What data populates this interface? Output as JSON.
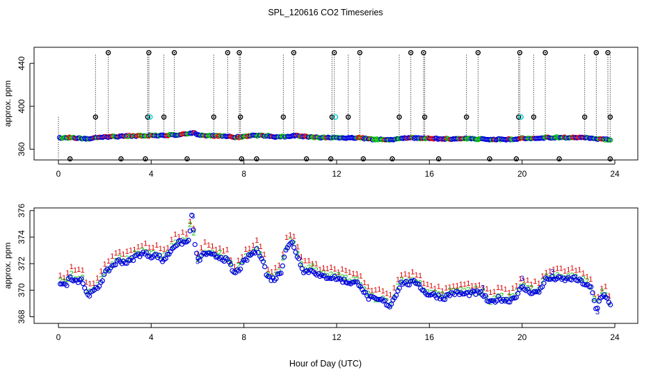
{
  "figure": {
    "title": "SPL_120616  CO2 Timeseries",
    "xlabel": "Hour of Day (UTC)"
  },
  "colors": {
    "series1": "#dd0000",
    "series2": "#00bb00",
    "series3": "#0000dd",
    "cyan": "#00cccc",
    "outlier": "#000000"
  },
  "chart_data": [
    {
      "type": "scatter",
      "panel": "top",
      "ylabel": "approx. ppm",
      "xlim": [
        0,
        24
      ],
      "ylim": [
        350,
        455
      ],
      "x_ticks": [
        "0",
        "4",
        "8",
        "12",
        "16",
        "20",
        "24"
      ],
      "y_ticks": [
        "360",
        "400",
        "440"
      ],
      "y_tick_values": [
        360,
        400,
        440
      ],
      "baseline": [
        [
          0,
          370.4
        ],
        [
          0.5,
          370.8
        ],
        [
          1.2,
          369.6
        ],
        [
          2,
          371.4
        ],
        [
          3,
          372.3
        ],
        [
          4,
          372.6
        ],
        [
          5,
          373.2
        ],
        [
          5.8,
          375.3
        ],
        [
          6.2,
          372.6
        ],
        [
          7,
          372.2
        ],
        [
          7.8,
          371.2
        ],
        [
          8.3,
          372.7
        ],
        [
          9,
          372.6
        ],
        [
          9.5,
          371.2
        ],
        [
          10.2,
          372.8
        ],
        [
          11,
          371.0
        ],
        [
          12,
          370.8
        ],
        [
          13,
          370.5
        ],
        [
          13.5,
          369.3
        ],
        [
          14.3,
          368.9
        ],
        [
          15,
          370.5
        ],
        [
          15.8,
          370.2
        ],
        [
          16.5,
          369.6
        ],
        [
          17.5,
          369.9
        ],
        [
          18.5,
          369.3
        ],
        [
          19.5,
          369.2
        ],
        [
          20,
          370.1
        ],
        [
          20.6,
          369.9
        ],
        [
          21,
          370.8
        ],
        [
          21.5,
          371.0
        ],
        [
          22.5,
          370.8
        ],
        [
          23,
          370.2
        ],
        [
          23.5,
          369.4
        ],
        [
          23.8,
          368.8
        ]
      ],
      "outliers_high": [
        2.15,
        3.9,
        5.0,
        7.3,
        7.8,
        10.15,
        11.9,
        13.0,
        15.2,
        15.75,
        18.1,
        19.9,
        21.0,
        23.2,
        23.7
      ],
      "outliers_mid": [
        1.6,
        3.85,
        4.55,
        6.7,
        7.85,
        9.7,
        11.8,
        12.5,
        14.7,
        15.8,
        17.6,
        19.85,
        20.5,
        22.7,
        23.8
      ],
      "outliers_low": [
        0.5,
        2.7,
        3.75,
        5.55,
        7.9,
        8.55,
        10.7,
        11.75,
        13.15,
        14.4,
        16.4,
        18.6,
        19.75,
        21.6,
        23.8
      ],
      "cyan_points": [
        3.95,
        11.95,
        19.95
      ],
      "high_value": 450,
      "mid_value": 390,
      "low_value": 351,
      "legend_chars": [
        "1",
        "2",
        "3"
      ]
    },
    {
      "type": "scatter",
      "panel": "bottom",
      "ylabel": "approx. ppm",
      "xlim": [
        0,
        24
      ],
      "ylim": [
        367.5,
        376.2
      ],
      "x_ticks": [
        "0",
        "4",
        "8",
        "12",
        "16",
        "20",
        "24"
      ],
      "y_ticks": [
        "368",
        "370",
        "372",
        "374",
        "376"
      ],
      "y_tick_values": [
        368,
        370,
        372,
        374,
        376
      ],
      "series": [
        {
          "name": "1",
          "offset": 0.7,
          "color": "#dd0000"
        },
        {
          "name": "2",
          "offset": 0.2,
          "color": "#00bb00"
        },
        {
          "name": "3",
          "offset": 0.0,
          "color": "#0000dd"
        }
      ],
      "baseline": [
        [
          0.1,
          370.6
        ],
        [
          0.3,
          370.3
        ],
        [
          0.5,
          371.0
        ],
        [
          0.8,
          370.7
        ],
        [
          1.0,
          370.9
        ],
        [
          1.2,
          369.8
        ],
        [
          1.4,
          369.7
        ],
        [
          1.7,
          370.2
        ],
        [
          2.0,
          371.2
        ],
        [
          2.3,
          371.8
        ],
        [
          2.6,
          372.2
        ],
        [
          3.0,
          372.1
        ],
        [
          3.3,
          372.5
        ],
        [
          3.6,
          372.8
        ],
        [
          4.0,
          372.6
        ],
        [
          4.3,
          372.6
        ],
        [
          4.5,
          372.2
        ],
        [
          4.7,
          372.6
        ],
        [
          5.0,
          373.4
        ],
        [
          5.3,
          373.6
        ],
        [
          5.6,
          373.6
        ],
        [
          5.75,
          375.5
        ],
        [
          5.85,
          374.0
        ],
        [
          6.0,
          372.2
        ],
        [
          6.3,
          372.8
        ],
        [
          6.6,
          372.6
        ],
        [
          7.0,
          372.5
        ],
        [
          7.3,
          372.2
        ],
        [
          7.6,
          371.2
        ],
        [
          7.8,
          371.6
        ],
        [
          8.0,
          372.1
        ],
        [
          8.3,
          372.7
        ],
        [
          8.6,
          373.0
        ],
        [
          8.8,
          372.4
        ],
        [
          9.0,
          371.0
        ],
        [
          9.3,
          370.8
        ],
        [
          9.6,
          371.4
        ],
        [
          9.8,
          373.1
        ],
        [
          10.1,
          373.6
        ],
        [
          10.3,
          372.6
        ],
        [
          10.6,
          371.4
        ],
        [
          11.0,
          371.5
        ],
        [
          11.3,
          371.0
        ],
        [
          11.7,
          371.0
        ],
        [
          12.0,
          370.9
        ],
        [
          12.5,
          370.6
        ],
        [
          13.0,
          370.5
        ],
        [
          13.3,
          369.5
        ],
        [
          13.6,
          369.3
        ],
        [
          14.0,
          369.2
        ],
        [
          14.3,
          368.8
        ],
        [
          14.5,
          369.5
        ],
        [
          14.8,
          370.6
        ],
        [
          15.1,
          370.5
        ],
        [
          15.5,
          370.6
        ],
        [
          15.8,
          369.8
        ],
        [
          16.0,
          369.7
        ],
        [
          16.3,
          369.6
        ],
        [
          16.6,
          369.4
        ],
        [
          17.0,
          369.8
        ],
        [
          17.5,
          369.7
        ],
        [
          18.0,
          369.8
        ],
        [
          18.3,
          369.7
        ],
        [
          18.6,
          369.0
        ],
        [
          19.0,
          369.4
        ],
        [
          19.4,
          369.2
        ],
        [
          19.7,
          369.5
        ],
        [
          20.0,
          370.2
        ],
        [
          20.3,
          369.9
        ],
        [
          20.7,
          369.8
        ],
        [
          21.0,
          370.8
        ],
        [
          21.4,
          370.9
        ],
        [
          21.8,
          370.8
        ],
        [
          22.2,
          370.9
        ],
        [
          22.6,
          370.6
        ],
        [
          23.0,
          370.1
        ],
        [
          23.2,
          368.4
        ],
        [
          23.4,
          369.6
        ],
        [
          23.6,
          369.6
        ],
        [
          23.8,
          368.8
        ]
      ]
    }
  ]
}
